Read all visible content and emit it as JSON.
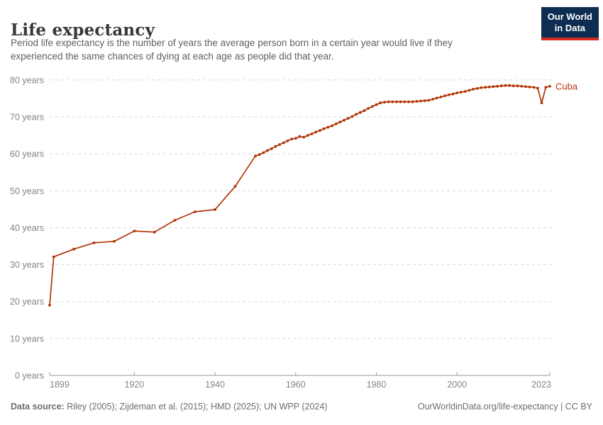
{
  "header": {
    "title": "Life expectancy",
    "subtitle_lines": [
      "Period life expectancy is the number of years the average person born in a certain year would live if they",
      "experienced the same chances of dying at each age as people did that year."
    ]
  },
  "logo": {
    "line1": "Our World",
    "line2": "in Data",
    "bg_color": "#0d2d52",
    "stripe_color": "#d42b23"
  },
  "chart_data": {
    "type": "line",
    "title": "Life expectancy",
    "xlabel": "",
    "ylabel": "",
    "xlim": [
      1899,
      2023
    ],
    "ylim": [
      0,
      80
    ],
    "x_ticks": [
      1899,
      1920,
      1940,
      1960,
      1980,
      2000,
      2023
    ],
    "y_ticks": [
      0,
      10,
      20,
      30,
      40,
      50,
      60,
      70,
      80
    ],
    "y_tick_suffix": " years",
    "grid": "horizontal-dashed",
    "legend_position": "end-of-line",
    "colors": {
      "line": "#b13507",
      "grid": "#d9d9d9",
      "axis": "#999999",
      "tick_label": "#858585"
    },
    "series": [
      {
        "name": "Cuba",
        "points": [
          [
            1899,
            19.0
          ],
          [
            1900,
            32.1
          ],
          [
            1905,
            34.2
          ],
          [
            1910,
            35.9
          ],
          [
            1915,
            36.3
          ],
          [
            1920,
            39.1
          ],
          [
            1925,
            38.8
          ],
          [
            1930,
            42.0
          ],
          [
            1935,
            44.3
          ],
          [
            1940,
            44.9
          ],
          [
            1945,
            51.2
          ],
          [
            1950,
            59.4
          ],
          [
            1951,
            59.8
          ],
          [
            1952,
            60.3
          ],
          [
            1953,
            60.9
          ],
          [
            1954,
            61.4
          ],
          [
            1955,
            62.0
          ],
          [
            1956,
            62.5
          ],
          [
            1957,
            63.0
          ],
          [
            1958,
            63.5
          ],
          [
            1959,
            64.0
          ],
          [
            1960,
            64.2
          ],
          [
            1961,
            64.7
          ],
          [
            1962,
            64.5
          ],
          [
            1963,
            65.0
          ],
          [
            1964,
            65.4
          ],
          [
            1965,
            65.9
          ],
          [
            1966,
            66.3
          ],
          [
            1967,
            66.8
          ],
          [
            1968,
            67.2
          ],
          [
            1969,
            67.6
          ],
          [
            1970,
            68.1
          ],
          [
            1971,
            68.6
          ],
          [
            1972,
            69.1
          ],
          [
            1973,
            69.6
          ],
          [
            1974,
            70.1
          ],
          [
            1975,
            70.7
          ],
          [
            1976,
            71.2
          ],
          [
            1977,
            71.7
          ],
          [
            1978,
            72.3
          ],
          [
            1979,
            72.8
          ],
          [
            1980,
            73.3
          ],
          [
            1981,
            73.8
          ],
          [
            1982,
            74.0
          ],
          [
            1983,
            74.1
          ],
          [
            1984,
            74.1
          ],
          [
            1985,
            74.1
          ],
          [
            1986,
            74.1
          ],
          [
            1987,
            74.1
          ],
          [
            1988,
            74.1
          ],
          [
            1989,
            74.1
          ],
          [
            1990,
            74.2
          ],
          [
            1991,
            74.3
          ],
          [
            1992,
            74.4
          ],
          [
            1993,
            74.5
          ],
          [
            1994,
            74.8
          ],
          [
            1995,
            75.1
          ],
          [
            1996,
            75.4
          ],
          [
            1997,
            75.7
          ],
          [
            1998,
            76.0
          ],
          [
            1999,
            76.2
          ],
          [
            2000,
            76.5
          ],
          [
            2001,
            76.7
          ],
          [
            2002,
            76.9
          ],
          [
            2003,
            77.2
          ],
          [
            2004,
            77.5
          ],
          [
            2005,
            77.7
          ],
          [
            2006,
            77.9
          ],
          [
            2007,
            78.0
          ],
          [
            2008,
            78.1
          ],
          [
            2009,
            78.2
          ],
          [
            2010,
            78.3
          ],
          [
            2011,
            78.4
          ],
          [
            2012,
            78.5
          ],
          [
            2013,
            78.5
          ],
          [
            2014,
            78.4
          ],
          [
            2015,
            78.4
          ],
          [
            2016,
            78.3
          ],
          [
            2017,
            78.2
          ],
          [
            2018,
            78.1
          ],
          [
            2019,
            78.0
          ],
          [
            2020,
            77.8
          ],
          [
            2021,
            73.8
          ],
          [
            2022,
            78.0
          ],
          [
            2023,
            78.3
          ]
        ]
      }
    ]
  },
  "footer": {
    "source_label": "Data source:",
    "source_text": " Riley (2005); Zijdeman et al. (2015); HMD (2025); UN WPP (2024)",
    "right_text": "OurWorldinData.org/life-expectancy | CC BY"
  }
}
